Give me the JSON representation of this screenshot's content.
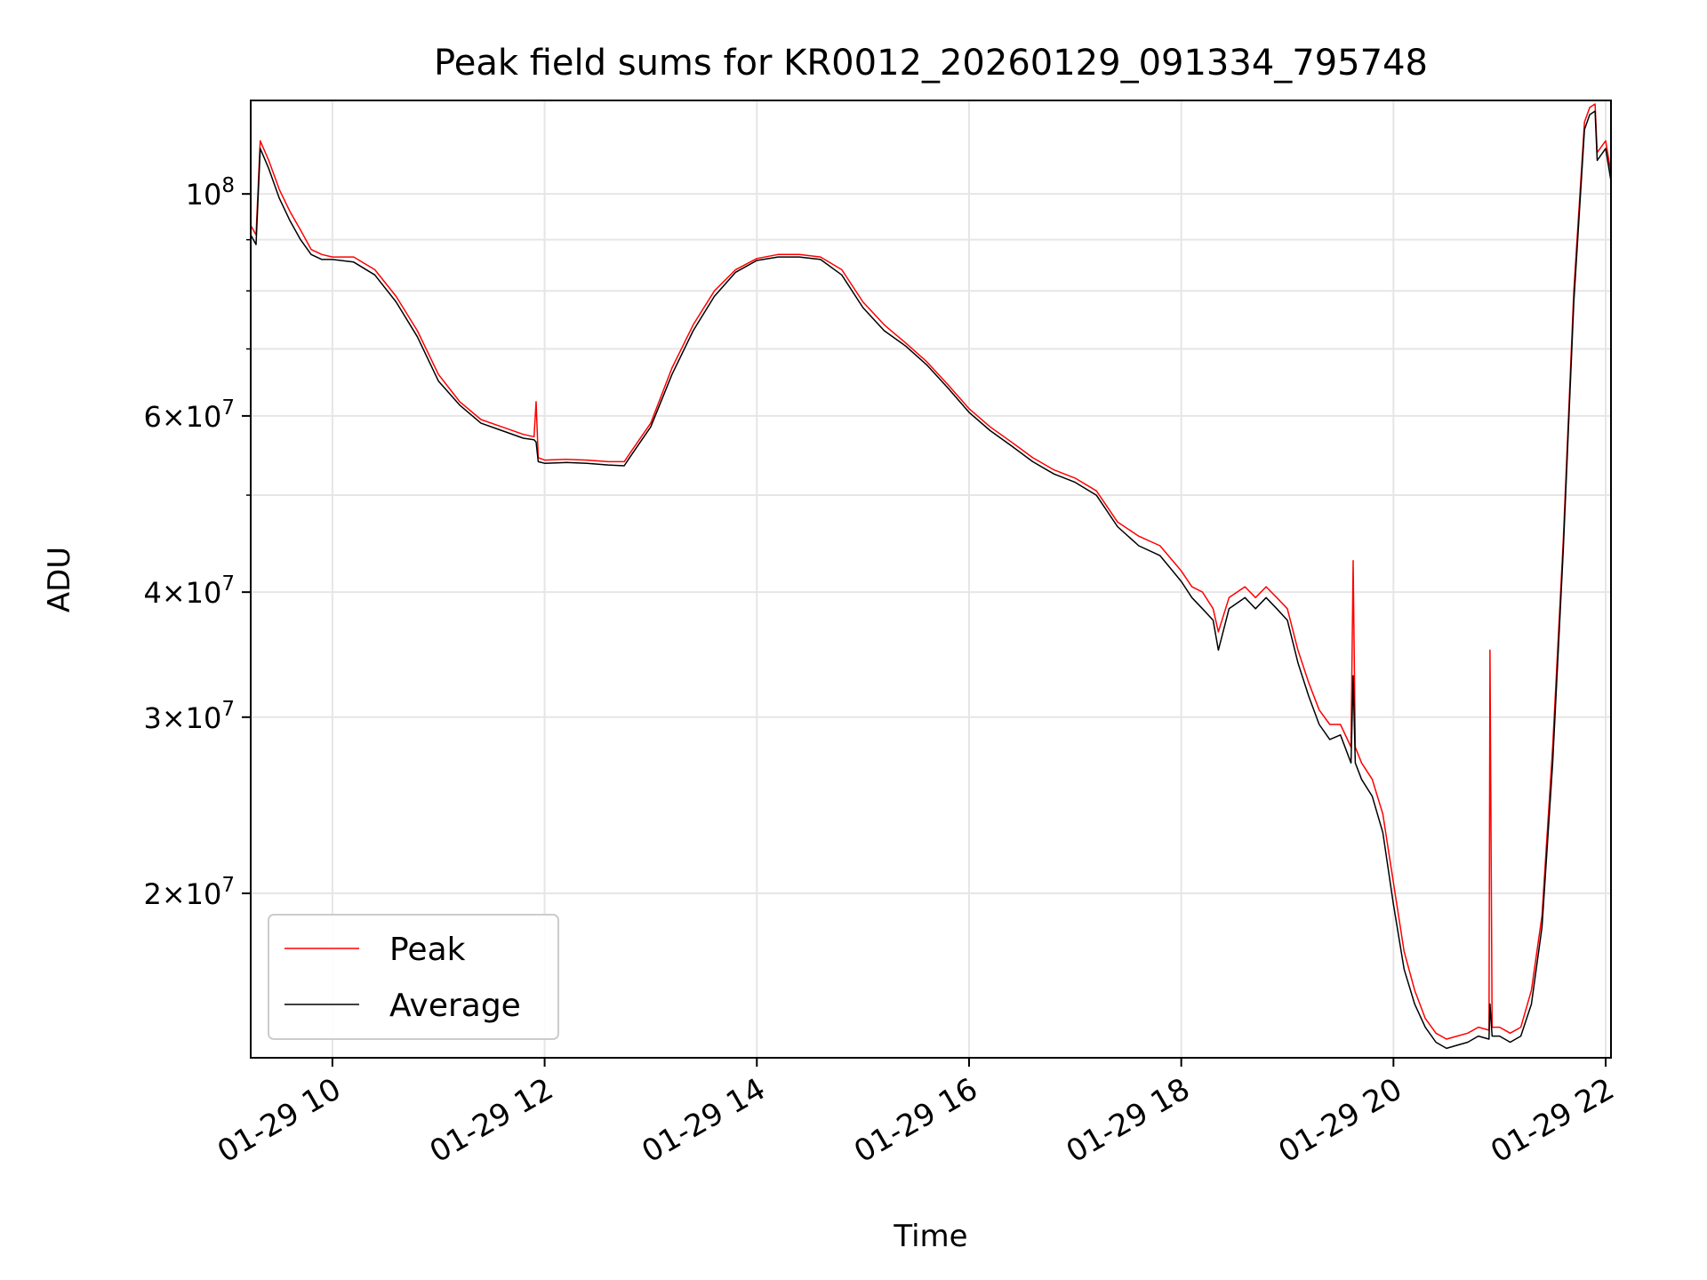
{
  "chart_data": {
    "type": "line",
    "title": "Peak field sums for KR0012_20260129_091334_795748",
    "xlabel": "Time",
    "ylabel": "ADU",
    "yscale": "log",
    "xlim_hours": [
      9.23,
      22.05
    ],
    "ylim": [
      13700000,
      124000000
    ],
    "grid": true,
    "legend_position": "lower-left",
    "x_ticks": [
      {
        "label": "01-29 10",
        "hour": 10
      },
      {
        "label": "01-29 12",
        "hour": 12
      },
      {
        "label": "01-29 14",
        "hour": 14
      },
      {
        "label": "01-29 16",
        "hour": 16
      },
      {
        "label": "01-29 18",
        "hour": 18
      },
      {
        "label": "01-29 20",
        "hour": 20
      },
      {
        "label": "01-29 22",
        "hour": 22
      }
    ],
    "y_ticks": [
      {
        "mantissa": "",
        "exp": "8",
        "value": 100000000
      },
      {
        "mantissa": "6",
        "exp": "7",
        "value": 60000000
      },
      {
        "mantissa": "4",
        "exp": "7",
        "value": 40000000
      },
      {
        "mantissa": "3",
        "exp": "7",
        "value": 30000000
      },
      {
        "mantissa": "2",
        "exp": "7",
        "value": 20000000
      }
    ],
    "y_minor_ticks": [
      90000000,
      80000000,
      70000000,
      50000000
    ],
    "series": [
      {
        "name": "Peak",
        "color": "#ff0000",
        "points": [
          [
            9.23,
            93000000
          ],
          [
            9.28,
            91000000
          ],
          [
            9.32,
            113000000
          ],
          [
            9.4,
            108000000
          ],
          [
            9.5,
            101000000
          ],
          [
            9.6,
            96000000
          ],
          [
            9.7,
            92000000
          ],
          [
            9.8,
            88000000
          ],
          [
            9.9,
            87000000
          ],
          [
            10.0,
            86500000
          ],
          [
            10.2,
            86500000
          ],
          [
            10.4,
            84000000
          ],
          [
            10.6,
            79000000
          ],
          [
            10.8,
            73000000
          ],
          [
            11.0,
            66000000
          ],
          [
            11.2,
            62000000
          ],
          [
            11.4,
            59500000
          ],
          [
            11.6,
            58500000
          ],
          [
            11.8,
            57500000
          ],
          [
            11.9,
            57200000
          ],
          [
            11.92,
            62000000
          ],
          [
            11.94,
            54500000
          ],
          [
            12.0,
            54200000
          ],
          [
            12.2,
            54300000
          ],
          [
            12.4,
            54200000
          ],
          [
            12.6,
            54000000
          ],
          [
            12.75,
            54000000
          ],
          [
            12.8,
            55000000
          ],
          [
            13.0,
            59000000
          ],
          [
            13.2,
            67000000
          ],
          [
            13.4,
            74000000
          ],
          [
            13.6,
            80000000
          ],
          [
            13.8,
            84000000
          ],
          [
            14.0,
            86200000
          ],
          [
            14.2,
            87000000
          ],
          [
            14.4,
            87000000
          ],
          [
            14.6,
            86500000
          ],
          [
            14.8,
            84000000
          ],
          [
            15.0,
            78000000
          ],
          [
            15.2,
            74000000
          ],
          [
            15.4,
            71000000
          ],
          [
            15.6,
            68000000
          ],
          [
            15.8,
            64500000
          ],
          [
            16.0,
            61000000
          ],
          [
            16.2,
            58500000
          ],
          [
            16.4,
            56500000
          ],
          [
            16.6,
            54500000
          ],
          [
            16.8,
            53000000
          ],
          [
            17.0,
            52000000
          ],
          [
            17.2,
            50500000
          ],
          [
            17.4,
            47000000
          ],
          [
            17.6,
            45500000
          ],
          [
            17.8,
            44500000
          ],
          [
            18.0,
            42000000
          ],
          [
            18.1,
            40500000
          ],
          [
            18.2,
            40000000
          ],
          [
            18.3,
            38500000
          ],
          [
            18.35,
            36500000
          ],
          [
            18.45,
            39500000
          ],
          [
            18.6,
            40500000
          ],
          [
            18.7,
            39500000
          ],
          [
            18.8,
            40500000
          ],
          [
            18.9,
            39500000
          ],
          [
            19.0,
            38500000
          ],
          [
            19.1,
            35000000
          ],
          [
            19.2,
            32500000
          ],
          [
            19.3,
            30500000
          ],
          [
            19.4,
            29500000
          ],
          [
            19.5,
            29500000
          ],
          [
            19.6,
            28000000
          ],
          [
            19.62,
            43000000
          ],
          [
            19.64,
            28000000
          ],
          [
            19.7,
            27000000
          ],
          [
            19.8,
            26000000
          ],
          [
            19.9,
            24000000
          ],
          [
            20.0,
            20500000
          ],
          [
            20.1,
            17500000
          ],
          [
            20.2,
            16000000
          ],
          [
            20.3,
            15000000
          ],
          [
            20.4,
            14500000
          ],
          [
            20.5,
            14300000
          ],
          [
            20.6,
            14400000
          ],
          [
            20.7,
            14500000
          ],
          [
            20.8,
            14700000
          ],
          [
            20.9,
            14600000
          ],
          [
            20.91,
            35000000
          ],
          [
            20.93,
            14700000
          ],
          [
            21.0,
            14700000
          ],
          [
            21.1,
            14500000
          ],
          [
            21.2,
            14700000
          ],
          [
            21.3,
            16000000
          ],
          [
            21.4,
            19000000
          ],
          [
            21.5,
            28000000
          ],
          [
            21.6,
            45000000
          ],
          [
            21.7,
            80000000
          ],
          [
            21.8,
            118000000
          ],
          [
            21.85,
            122000000
          ],
          [
            21.9,
            123000000
          ],
          [
            21.92,
            110000000
          ],
          [
            22.0,
            113000000
          ],
          [
            22.05,
            105000000
          ]
        ]
      },
      {
        "name": "Average",
        "color": "#000000",
        "points": [
          [
            9.23,
            91000000
          ],
          [
            9.28,
            89000000
          ],
          [
            9.32,
            111000000
          ],
          [
            9.4,
            106000000
          ],
          [
            9.5,
            99000000
          ],
          [
            9.6,
            94000000
          ],
          [
            9.7,
            90000000
          ],
          [
            9.8,
            87000000
          ],
          [
            9.9,
            86000000
          ],
          [
            10.0,
            86000000
          ],
          [
            10.2,
            85500000
          ],
          [
            10.4,
            83000000
          ],
          [
            10.6,
            78000000
          ],
          [
            10.8,
            72000000
          ],
          [
            11.0,
            65000000
          ],
          [
            11.2,
            61500000
          ],
          [
            11.4,
            59000000
          ],
          [
            11.6,
            58000000
          ],
          [
            11.8,
            57000000
          ],
          [
            11.9,
            56800000
          ],
          [
            11.92,
            56500000
          ],
          [
            11.94,
            54000000
          ],
          [
            12.0,
            53800000
          ],
          [
            12.2,
            53900000
          ],
          [
            12.4,
            53800000
          ],
          [
            12.6,
            53600000
          ],
          [
            12.75,
            53500000
          ],
          [
            12.8,
            54500000
          ],
          [
            13.0,
            58500000
          ],
          [
            13.2,
            66000000
          ],
          [
            13.4,
            73000000
          ],
          [
            13.6,
            79000000
          ],
          [
            13.8,
            83500000
          ],
          [
            14.0,
            85800000
          ],
          [
            14.2,
            86500000
          ],
          [
            14.4,
            86500000
          ],
          [
            14.6,
            86000000
          ],
          [
            14.8,
            83000000
          ],
          [
            15.0,
            77000000
          ],
          [
            15.2,
            73000000
          ],
          [
            15.4,
            70500000
          ],
          [
            15.6,
            67500000
          ],
          [
            15.8,
            64000000
          ],
          [
            16.0,
            60500000
          ],
          [
            16.2,
            58000000
          ],
          [
            16.4,
            56000000
          ],
          [
            16.6,
            54000000
          ],
          [
            16.8,
            52500000
          ],
          [
            17.0,
            51500000
          ],
          [
            17.2,
            50000000
          ],
          [
            17.4,
            46500000
          ],
          [
            17.6,
            44500000
          ],
          [
            17.8,
            43500000
          ],
          [
            18.0,
            41000000
          ],
          [
            18.1,
            39500000
          ],
          [
            18.2,
            38500000
          ],
          [
            18.3,
            37500000
          ],
          [
            18.35,
            35000000
          ],
          [
            18.45,
            38500000
          ],
          [
            18.6,
            39500000
          ],
          [
            18.7,
            38500000
          ],
          [
            18.8,
            39500000
          ],
          [
            18.9,
            38500000
          ],
          [
            19.0,
            37500000
          ],
          [
            19.1,
            34000000
          ],
          [
            19.2,
            31500000
          ],
          [
            19.3,
            29500000
          ],
          [
            19.4,
            28500000
          ],
          [
            19.5,
            28800000
          ],
          [
            19.6,
            27000000
          ],
          [
            19.62,
            33000000
          ],
          [
            19.64,
            27000000
          ],
          [
            19.7,
            26000000
          ],
          [
            19.8,
            25000000
          ],
          [
            19.9,
            23000000
          ],
          [
            20.0,
            19500000
          ],
          [
            20.1,
            16800000
          ],
          [
            20.2,
            15500000
          ],
          [
            20.3,
            14700000
          ],
          [
            20.4,
            14200000
          ],
          [
            20.5,
            14000000
          ],
          [
            20.6,
            14100000
          ],
          [
            20.7,
            14200000
          ],
          [
            20.8,
            14400000
          ],
          [
            20.9,
            14300000
          ],
          [
            20.91,
            15500000
          ],
          [
            20.93,
            14400000
          ],
          [
            21.0,
            14400000
          ],
          [
            21.1,
            14200000
          ],
          [
            21.2,
            14400000
          ],
          [
            21.3,
            15500000
          ],
          [
            21.4,
            18500000
          ],
          [
            21.5,
            27000000
          ],
          [
            21.6,
            44000000
          ],
          [
            21.7,
            78000000
          ],
          [
            21.8,
            116000000
          ],
          [
            21.85,
            120000000
          ],
          [
            21.9,
            121000000
          ],
          [
            21.92,
            108000000
          ],
          [
            22.0,
            111000000
          ],
          [
            22.05,
            103000000
          ]
        ]
      }
    ]
  }
}
